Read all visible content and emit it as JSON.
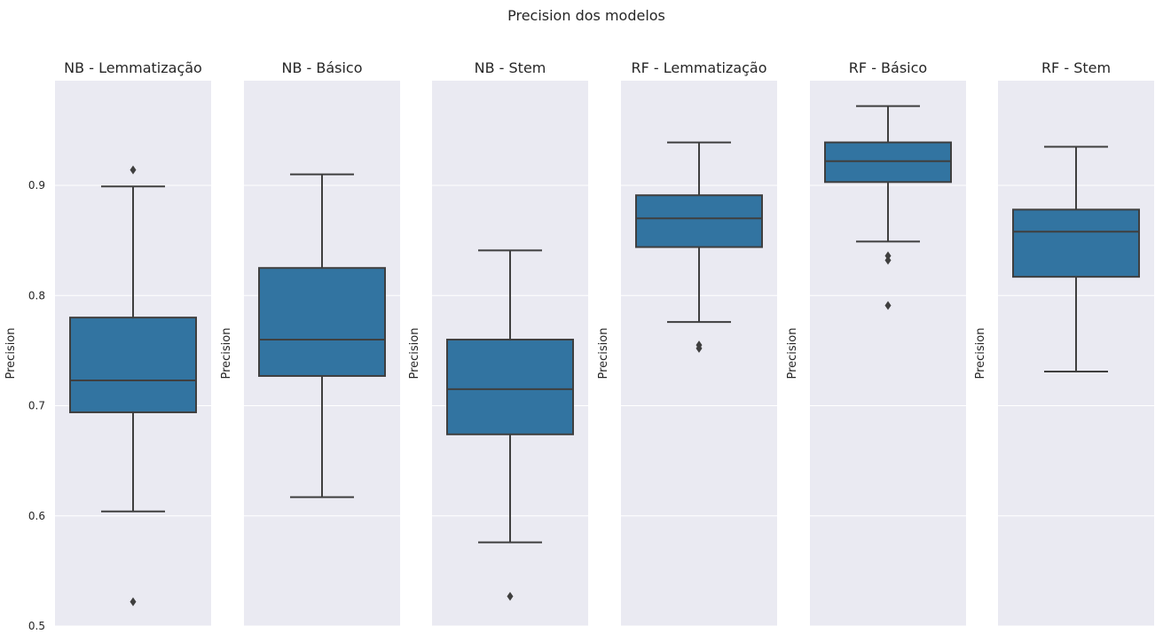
{
  "chart_data": {
    "type": "box",
    "title": "Precision dos modelos",
    "ylabel": "Precision",
    "ylim": [
      0.5,
      0.995
    ],
    "yticks": [
      0.5,
      0.6,
      0.7,
      0.8,
      0.9
    ],
    "ytick_labels": [
      "0.5",
      "0.6",
      "0.7",
      "0.8",
      "0.9"
    ],
    "grid": true,
    "box_color": "#3274a1",
    "line_color": "#3f3f3f",
    "panel_bg": "#eaeaf2",
    "panels": [
      {
        "title": "NB - Lemmatização",
        "whisker_low": 0.604,
        "q1": 0.694,
        "median": 0.723,
        "q3": 0.78,
        "whisker_high": 0.899,
        "outliers": [
          0.914,
          0.522
        ]
      },
      {
        "title": "NB - Básico",
        "whisker_low": 0.617,
        "q1": 0.727,
        "median": 0.76,
        "q3": 0.825,
        "whisker_high": 0.91,
        "outliers": []
      },
      {
        "title": "NB - Stem",
        "whisker_low": 0.576,
        "q1": 0.674,
        "median": 0.715,
        "q3": 0.76,
        "whisker_high": 0.841,
        "outliers": [
          0.527
        ]
      },
      {
        "title": "RF - Lemmatização",
        "whisker_low": 0.776,
        "q1": 0.844,
        "median": 0.87,
        "q3": 0.891,
        "whisker_high": 0.939,
        "outliers": [
          0.755,
          0.752
        ]
      },
      {
        "title": "RF - Básico",
        "whisker_low": 0.849,
        "q1": 0.903,
        "median": 0.922,
        "q3": 0.939,
        "whisker_high": 0.972,
        "outliers": [
          0.836,
          0.832,
          0.791
        ]
      },
      {
        "title": "RF - Stem",
        "whisker_low": 0.731,
        "q1": 0.817,
        "median": 0.858,
        "q3": 0.878,
        "whisker_high": 0.935,
        "outliers": []
      }
    ]
  }
}
